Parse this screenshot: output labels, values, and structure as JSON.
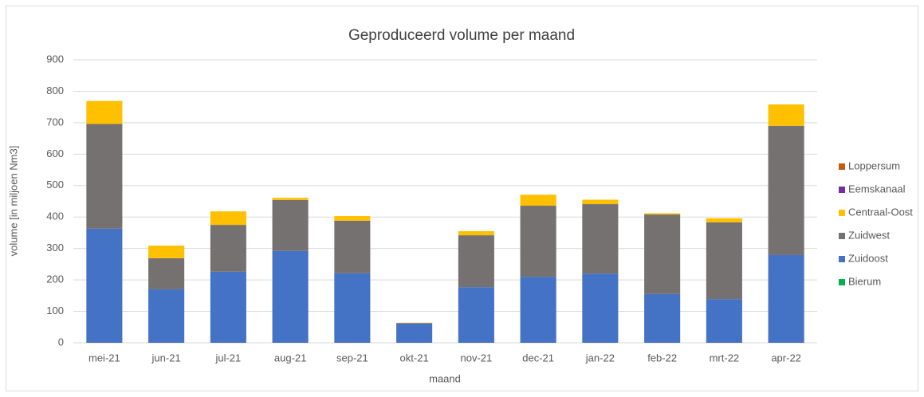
{
  "chart_data": {
    "type": "stacked_bar",
    "title": "Geproduceerd volume per maand",
    "x_label": "maand",
    "y_label": "volume [in miljoen Nm3]",
    "categories": [
      "mei-21",
      "jun-21",
      "jul-21",
      "aug-21",
      "sep-21",
      "okt-21",
      "nov-21",
      "dec-21",
      "jan-22",
      "feb-22",
      "mrt-22",
      "apr-22"
    ],
    "series": [
      {
        "name": "Bierum",
        "color": "#00b050",
        "values": [
          0,
          0,
          0,
          0,
          0,
          0,
          0,
          0,
          0,
          0,
          0,
          0
        ]
      },
      {
        "name": "Zuidoost",
        "color": "#4472c4",
        "values": [
          363,
          170,
          226,
          292,
          221,
          61,
          177,
          210,
          220,
          155,
          139,
          279
        ]
      },
      {
        "name": "Zuidwest",
        "color": "#767171",
        "values": [
          333,
          99,
          149,
          162,
          167,
          2,
          165,
          226,
          221,
          253,
          244,
          411
        ]
      },
      {
        "name": "Centraal-Oost",
        "color": "#ffc000",
        "values": [
          73,
          40,
          43,
          7,
          15,
          1,
          13,
          35,
          14,
          4,
          13,
          68
        ]
      },
      {
        "name": "Eemskanaal",
        "color": "#7030a0",
        "values": [
          0,
          0,
          0,
          0,
          0,
          0,
          0,
          0,
          0,
          0,
          0,
          0
        ]
      },
      {
        "name": "Loppersum",
        "color": "#c55a11",
        "values": [
          0,
          0,
          0,
          0,
          0,
          0,
          0,
          0,
          0,
          0,
          0,
          0
        ]
      }
    ],
    "ylim": [
      0,
      900
    ],
    "yticks": [
      0,
      100,
      200,
      300,
      400,
      500,
      600,
      700,
      800,
      900
    ],
    "grid": true,
    "legend": "right"
  }
}
